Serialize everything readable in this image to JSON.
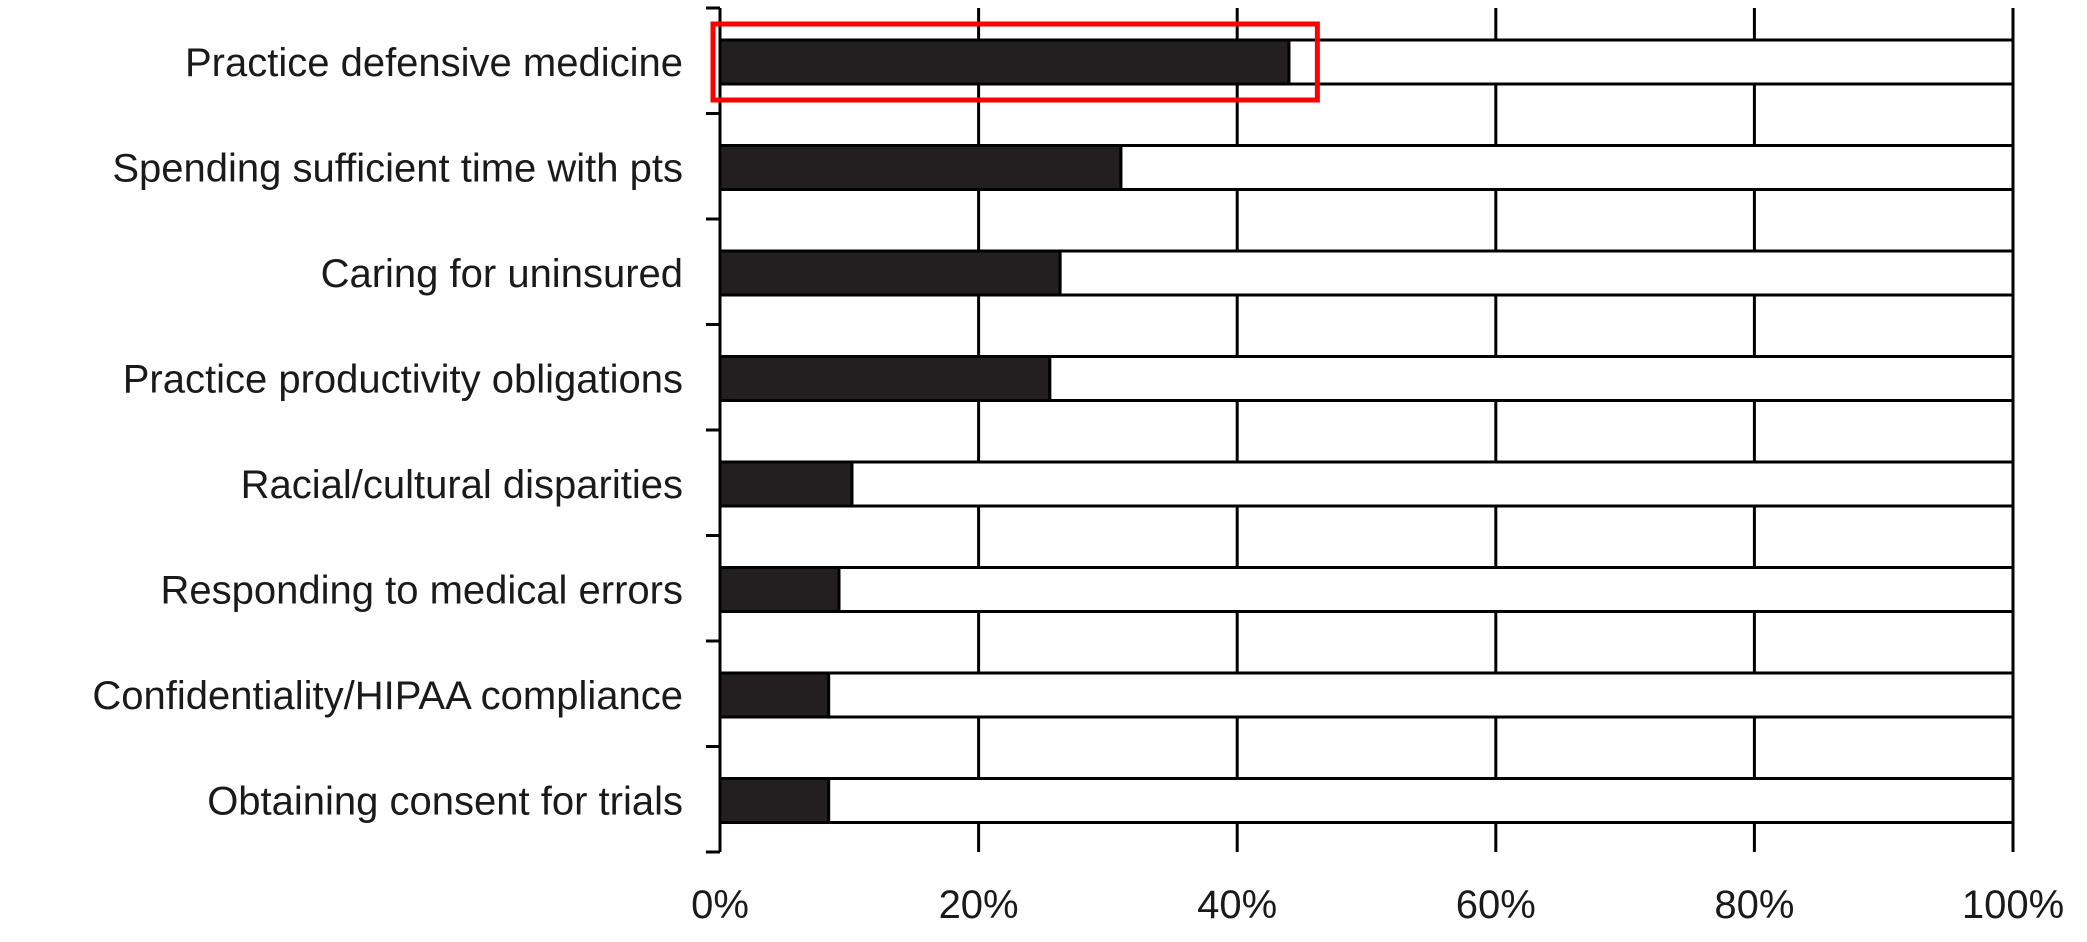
{
  "chart_data": {
    "type": "bar",
    "orientation": "horizontal",
    "stacked_to_100": true,
    "categories": [
      "Practice defensive medicine",
      "Spending sufficient time with pts",
      "Caring for uninsured",
      "Practice productivity obligations",
      "Racial/cultural disparities",
      "Responding to medical errors",
      "Confidentiality/HIPAA compliance",
      "Obtaining consent for trials"
    ],
    "series": [
      {
        "values": [
          44,
          31,
          26.3,
          25.5,
          10.2,
          9.2,
          8.4,
          8.4
        ]
      },
      {
        "values": [
          56,
          69,
          73.7,
          74.5,
          89.8,
          90.8,
          91.6,
          91.6
        ]
      }
    ],
    "xlim": [
      0,
      100
    ],
    "x_ticks": [
      "0%",
      "20%",
      "40%",
      "60%",
      "80%",
      "100%"
    ],
    "title": "",
    "xlabel": "",
    "ylabel": "",
    "grid": "vertical",
    "legend": "none",
    "highlighted_category": "Practice defensive medicine",
    "colors": {
      "filled": "#231f20",
      "remainder": "#ffffff",
      "outline": "#000000",
      "highlight": "#ff0000"
    }
  }
}
